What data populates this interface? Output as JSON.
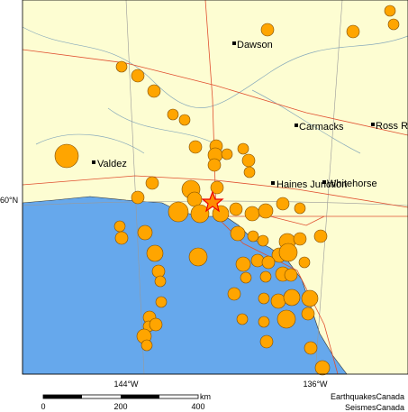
{
  "places": [
    "Dawson",
    "Carmacks",
    "Ross R",
    "Valdez",
    "Haines Junction",
    "Whitehorse"
  ],
  "graticule": {
    "latitude": "60°N",
    "longitudes": [
      "144°W",
      "136°W"
    ]
  },
  "scale_bar": {
    "ticks": [
      0,
      200,
      400
    ],
    "unit": "km"
  },
  "credits": [
    "EarthquakesCanada",
    "SeismesCanada"
  ]
}
